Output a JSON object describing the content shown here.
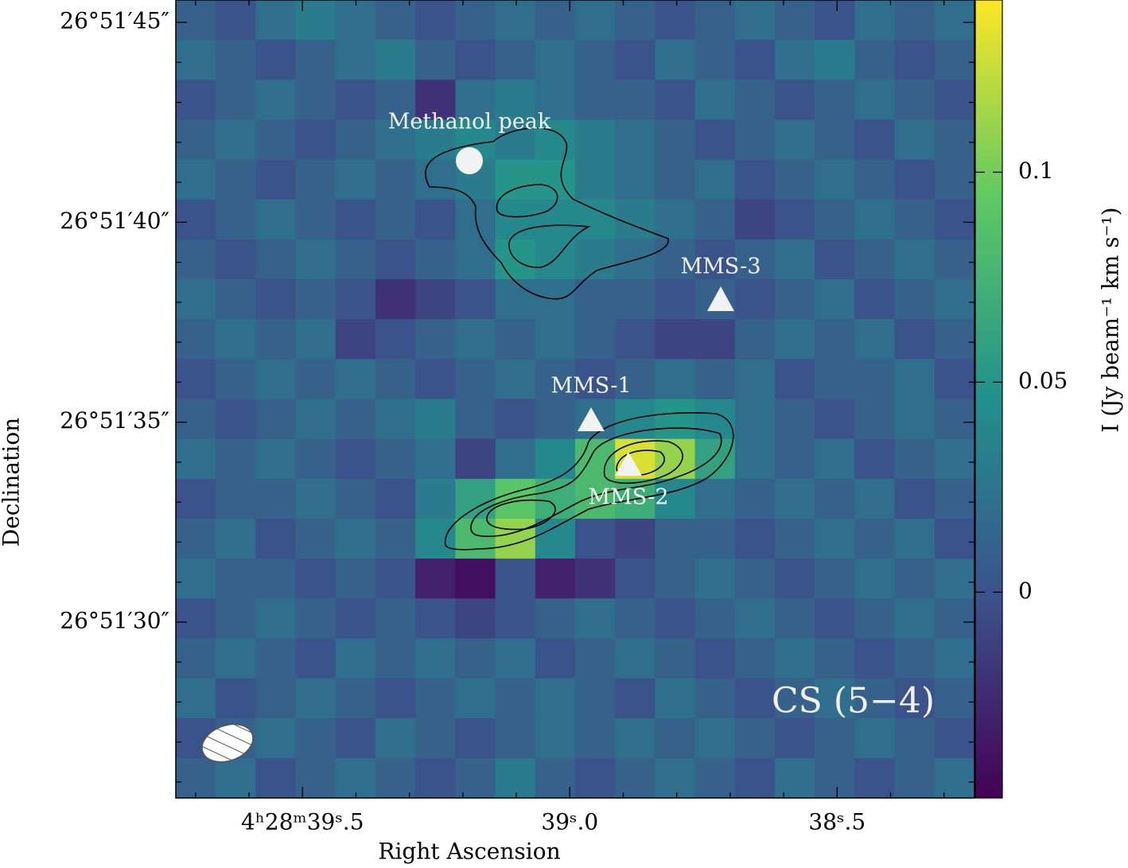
{
  "chart_data": {
    "type": "heatmap",
    "xlabel": "Right Ascension",
    "ylabel": "Declination",
    "colorbar_label": "I (Jy beam⁻¹ km s⁻¹)",
    "annotations": [
      "Methanol peak",
      "MMS-3",
      "MMS-1",
      "MMS-2",
      "CS (5−4)"
    ],
    "colormap": "viridis",
    "xlim": [
      39.737,
      38.243
    ],
    "xticks": [
      {
        "value": 39.5,
        "label": "4ʰ28ᵐ39ˢ.5"
      },
      {
        "value": 39.0,
        "label": "39ˢ.0"
      },
      {
        "value": 38.5,
        "label": "38ˢ.5"
      }
    ],
    "ylim": [
      25.6,
      45.56
    ],
    "yticks": [
      {
        "value": 30,
        "label": "26°51′30″"
      },
      {
        "value": 35,
        "label": "26°51′35″"
      },
      {
        "value": 40,
        "label": "26°51′40″"
      },
      {
        "value": 45,
        "label": "26°51′45″"
      }
    ],
    "clim": [
      -0.049,
      0.141
    ],
    "cticks": [
      0,
      0.05,
      0.1
    ],
    "z": [
      [
        0.01,
        0.0,
        0.02,
        0.03,
        0.02,
        0.01,
        0.0,
        0.01,
        0.02,
        0.01,
        0.02,
        0.01,
        0.0,
        0.01,
        0.02,
        0.01,
        0.0,
        0.02,
        0.01,
        0.02
      ],
      [
        0.02,
        0.01,
        0.0,
        0.01,
        0.02,
        0.03,
        0.01,
        0.0,
        0.01,
        0.02,
        0.01,
        0.0,
        0.02,
        0.01,
        0.0,
        0.02,
        0.03,
        0.01,
        0.0,
        0.01
      ],
      [
        0.0,
        0.01,
        0.02,
        0.01,
        0.0,
        0.01,
        -0.02,
        0.02,
        0.03,
        0.02,
        0.01,
        0.01,
        0.0,
        0.02,
        0.01,
        0.0,
        0.01,
        0.02,
        0.01,
        0.0
      ],
      [
        0.01,
        0.02,
        0.01,
        0.0,
        0.01,
        0.02,
        0.03,
        0.04,
        0.03,
        0.04,
        0.03,
        0.02,
        0.01,
        0.0,
        0.01,
        0.02,
        0.01,
        0.0,
        0.02,
        0.01
      ],
      [
        0.02,
        0.01,
        0.0,
        0.01,
        0.02,
        0.01,
        0.02,
        0.03,
        0.05,
        0.05,
        0.03,
        0.02,
        0.01,
        0.02,
        0.0,
        0.01,
        0.02,
        0.01,
        0.0,
        0.01
      ],
      [
        0.0,
        0.01,
        0.02,
        0.01,
        0.0,
        0.01,
        0.0,
        0.02,
        0.04,
        0.04,
        0.04,
        0.03,
        0.02,
        0.01,
        -0.01,
        0.0,
        0.01,
        0.02,
        0.01,
        0.0
      ],
      [
        0.01,
        0.0,
        0.01,
        0.02,
        0.01,
        0.0,
        0.01,
        0.02,
        0.05,
        0.04,
        0.03,
        0.02,
        0.01,
        0.0,
        0.01,
        0.02,
        0.0,
        0.01,
        0.02,
        0.01
      ],
      [
        0.02,
        0.01,
        0.0,
        0.01,
        0.0,
        -0.02,
        -0.01,
        0.0,
        0.02,
        0.02,
        0.01,
        0.01,
        0.0,
        0.01,
        0.0,
        0.01,
        0.02,
        0.0,
        0.01,
        0.02
      ],
      [
        0.01,
        0.02,
        0.01,
        0.02,
        -0.01,
        0.0,
        0.01,
        0.02,
        0.01,
        0.02,
        0.01,
        0.0,
        -0.01,
        -0.01,
        0.01,
        0.02,
        0.01,
        0.02,
        0.0,
        0.01
      ],
      [
        0.0,
        0.01,
        0.02,
        0.01,
        0.02,
        0.01,
        0.0,
        0.01,
        0.02,
        0.01,
        0.0,
        0.01,
        0.02,
        0.01,
        0.02,
        0.0,
        0.01,
        0.01,
        0.02,
        0.0
      ],
      [
        0.01,
        0.0,
        0.01,
        0.02,
        0.01,
        0.02,
        0.03,
        0.01,
        0.0,
        0.01,
        0.02,
        0.04,
        0.05,
        0.04,
        0.02,
        0.01,
        0.0,
        0.01,
        0.02,
        0.01
      ],
      [
        0.02,
        0.01,
        0.02,
        0.01,
        0.0,
        0.01,
        0.02,
        -0.01,
        0.02,
        0.04,
        0.08,
        0.13,
        0.11,
        0.06,
        0.02,
        0.01,
        0.02,
        0.0,
        0.01,
        0.02
      ],
      [
        0.0,
        0.01,
        0.01,
        0.02,
        0.01,
        0.0,
        0.03,
        0.06,
        0.09,
        0.07,
        0.08,
        0.07,
        0.04,
        0.02,
        0.01,
        0.02,
        0.01,
        0.02,
        0.0,
        0.01
      ],
      [
        0.01,
        0.02,
        0.0,
        0.01,
        0.02,
        0.01,
        0.04,
        0.08,
        0.11,
        0.04,
        0.0,
        -0.01,
        0.01,
        0.01,
        0.0,
        0.01,
        0.02,
        0.01,
        0.02,
        0.0
      ],
      [
        0.02,
        0.01,
        0.01,
        0.0,
        0.01,
        0.0,
        -0.03,
        -0.04,
        0.0,
        -0.03,
        -0.02,
        0.0,
        0.01,
        0.02,
        0.01,
        0.0,
        0.01,
        0.02,
        0.01,
        0.02
      ],
      [
        0.0,
        0.01,
        0.02,
        0.01,
        0.0,
        0.01,
        0.0,
        -0.01,
        0.0,
        0.01,
        0.02,
        0.01,
        0.0,
        0.01,
        0.02,
        0.01,
        0.0,
        0.01,
        0.02,
        0.01
      ],
      [
        0.01,
        0.02,
        0.01,
        0.0,
        0.02,
        0.01,
        0.02,
        0.01,
        0.02,
        0.0,
        0.01,
        0.02,
        0.01,
        0.0,
        0.01,
        0.02,
        0.01,
        0.0,
        0.01,
        0.02
      ],
      [
        0.02,
        0.0,
        0.01,
        0.02,
        0.01,
        0.0,
        0.01,
        0.02,
        0.01,
        0.02,
        0.01,
        0.0,
        0.02,
        0.01,
        0.0,
        0.01,
        0.02,
        0.01,
        0.0,
        0.01
      ],
      [
        0.0,
        0.01,
        0.02,
        0.01,
        0.0,
        0.02,
        0.01,
        0.0,
        0.01,
        0.02,
        0.01,
        0.02,
        0.01,
        0.02,
        0.01,
        0.0,
        0.01,
        0.02,
        0.01,
        0.0
      ],
      [
        0.01,
        0.02,
        0.0,
        0.01,
        0.02,
        0.01,
        0.0,
        0.01,
        0.03,
        0.01,
        0.0,
        0.01,
        0.02,
        0.01,
        0.0,
        0.02,
        0.01,
        0.0,
        0.01,
        0.02
      ]
    ]
  }
}
